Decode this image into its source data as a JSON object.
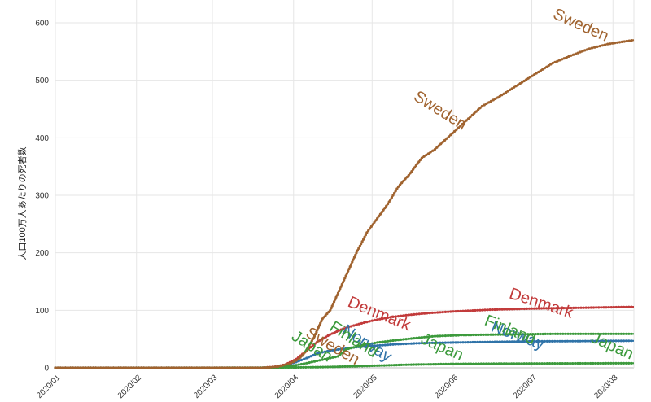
{
  "chart_data": {
    "type": "line",
    "title": "",
    "ylabel": "人口100万人あたりの死者数",
    "xlabel": "",
    "x_ticks": [
      "2020/01",
      "2020/02",
      "2020/03",
      "2020/04",
      "2020/05",
      "2020/06",
      "2020/07",
      "2020/08"
    ],
    "x_range": [
      "2020-01-01",
      "2020-08-09"
    ],
    "ylim": [
      0,
      600
    ],
    "y_ticks": [
      0,
      100,
      200,
      300,
      400,
      500,
      600
    ],
    "grid": true,
    "series": [
      {
        "name": "Sweden",
        "color": "#a0632f",
        "points": [
          [
            "2020-01-01",
            0
          ],
          [
            "2020-03-20",
            0
          ],
          [
            "2020-03-26",
            2
          ],
          [
            "2020-03-31",
            8
          ],
          [
            "2020-04-03",
            15
          ],
          [
            "2020-04-06",
            30
          ],
          [
            "2020-04-09",
            55
          ],
          [
            "2020-04-12",
            85
          ],
          [
            "2020-04-15",
            100
          ],
          [
            "2020-04-18",
            130
          ],
          [
            "2020-04-21",
            160
          ],
          [
            "2020-04-25",
            200
          ],
          [
            "2020-04-29",
            235
          ],
          [
            "2020-05-03",
            260
          ],
          [
            "2020-05-07",
            285
          ],
          [
            "2020-05-11",
            315
          ],
          [
            "2020-05-15",
            335
          ],
          [
            "2020-05-20",
            365
          ],
          [
            "2020-05-25",
            380
          ],
          [
            "2020-05-31",
            405
          ],
          [
            "2020-06-06",
            430
          ],
          [
            "2020-06-12",
            455
          ],
          [
            "2020-06-18",
            470
          ],
          [
            "2020-06-25",
            490
          ],
          [
            "2020-07-02",
            510
          ],
          [
            "2020-07-09",
            530
          ],
          [
            "2020-07-16",
            543
          ],
          [
            "2020-07-23",
            555
          ],
          [
            "2020-07-30",
            563
          ],
          [
            "2020-08-09",
            570
          ]
        ]
      },
      {
        "name": "Denmark",
        "color": "#c23b3b",
        "points": [
          [
            "2020-01-01",
            0
          ],
          [
            "2020-03-20",
            0
          ],
          [
            "2020-03-25",
            2
          ],
          [
            "2020-03-29",
            6
          ],
          [
            "2020-04-02",
            15
          ],
          [
            "2020-04-06",
            30
          ],
          [
            "2020-04-10",
            45
          ],
          [
            "2020-04-15",
            58
          ],
          [
            "2020-04-20",
            68
          ],
          [
            "2020-04-25",
            75
          ],
          [
            "2020-05-01",
            82
          ],
          [
            "2020-05-08",
            88
          ],
          [
            "2020-05-15",
            92
          ],
          [
            "2020-05-22",
            95
          ],
          [
            "2020-06-01",
            98
          ],
          [
            "2020-06-15",
            101
          ],
          [
            "2020-07-01",
            103
          ],
          [
            "2020-07-15",
            104
          ],
          [
            "2020-08-09",
            106
          ]
        ]
      },
      {
        "name": "Norway",
        "color": "#2f73a8",
        "points": [
          [
            "2020-01-01",
            0
          ],
          [
            "2020-03-22",
            0
          ],
          [
            "2020-03-28",
            3
          ],
          [
            "2020-04-02",
            10
          ],
          [
            "2020-04-06",
            17
          ],
          [
            "2020-04-10",
            25
          ],
          [
            "2020-04-15",
            30
          ],
          [
            "2020-04-20",
            33
          ],
          [
            "2020-04-25",
            36
          ],
          [
            "2020-05-01",
            38
          ],
          [
            "2020-05-10",
            41
          ],
          [
            "2020-05-20",
            43
          ],
          [
            "2020-06-01",
            44
          ],
          [
            "2020-06-15",
            45
          ],
          [
            "2020-07-01",
            46
          ],
          [
            "2020-08-09",
            47
          ]
        ]
      },
      {
        "name": "Finland",
        "color": "#3c9a3c",
        "points": [
          [
            "2020-01-01",
            0
          ],
          [
            "2020-03-24",
            0
          ],
          [
            "2020-03-31",
            3
          ],
          [
            "2020-04-06",
            8
          ],
          [
            "2020-04-12",
            14
          ],
          [
            "2020-04-18",
            20
          ],
          [
            "2020-04-21",
            32
          ],
          [
            "2020-04-26",
            38
          ],
          [
            "2020-05-03",
            44
          ],
          [
            "2020-05-10",
            48
          ],
          [
            "2020-05-18",
            52
          ],
          [
            "2020-05-25",
            55
          ],
          [
            "2020-06-05",
            57
          ],
          [
            "2020-06-20",
            58
          ],
          [
            "2020-07-10",
            59
          ],
          [
            "2020-08-09",
            59
          ]
        ]
      },
      {
        "name": "Japan",
        "color": "#3c9a3c",
        "points": [
          [
            "2020-01-01",
            0
          ],
          [
            "2020-03-01",
            0
          ],
          [
            "2020-04-01",
            0.6
          ],
          [
            "2020-04-15",
            1.5
          ],
          [
            "2020-05-01",
            3.5
          ],
          [
            "2020-05-15",
            5.5
          ],
          [
            "2020-06-01",
            6.8
          ],
          [
            "2020-07-01",
            7.5
          ],
          [
            "2020-08-09",
            8
          ]
        ]
      }
    ]
  }
}
